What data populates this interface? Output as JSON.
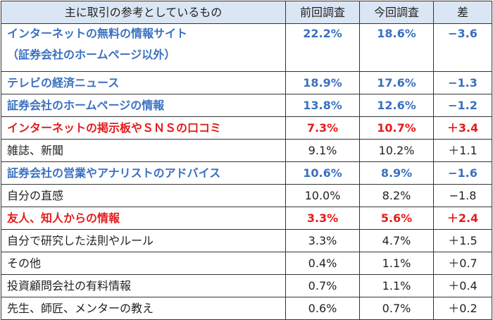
{
  "table": {
    "headers": [
      "主に取引の参考としているもの",
      "前回調査",
      "今回調査",
      "差"
    ],
    "rows": [
      {
        "label": "インターネットの無料の情報サイト",
        "label_line2": "（証券会社のホームページ以外）",
        "prev": "22.2%",
        "curr": "18.6%",
        "diff": "−3.6",
        "color": "#3a70c0"
      },
      {
        "label": "テレビの経済ニュース",
        "prev": "18.9%",
        "curr": "17.6%",
        "diff": "−1.3",
        "color": "#3a70c0"
      },
      {
        "label": "証券会社のホームページの情報",
        "prev": "13.8%",
        "curr": "12.6%",
        "diff": "−1.2",
        "color": "#3a70c0"
      },
      {
        "label": "インターネットの掲示板やＳＮＳの口コミ",
        "prev": "7.3%",
        "curr": "10.7%",
        "diff": "＋3.4",
        "color": "#e51c1c"
      },
      {
        "label": "雑誌、新聞",
        "prev": "9.1%",
        "curr": "10.2%",
        "diff": "＋1.1",
        "color": "#222222"
      },
      {
        "label": "証券会社の営業やアナリストのアドバイス",
        "prev": "10.6%",
        "curr": "8.9%",
        "diff": "−1.6",
        "color": "#3a70c0"
      },
      {
        "label": "自分の直感",
        "prev": "10.0%",
        "curr": "8.2%",
        "diff": "−1.8",
        "color": "#222222"
      },
      {
        "label": "友人、知人からの情報",
        "prev": "3.3%",
        "curr": "5.6%",
        "diff": "＋2.4",
        "color": "#e51c1c"
      },
      {
        "label": "自分で研究した法則やルール",
        "prev": "3.3%",
        "curr": "4.7%",
        "diff": "＋1.5",
        "color": "#222222"
      },
      {
        "label": "その他",
        "prev": "0.4%",
        "curr": "1.1%",
        "diff": "＋0.7",
        "color": "#222222"
      },
      {
        "label": "投資顧問会社の有料情報",
        "prev": "0.7%",
        "curr": "1.1%",
        "diff": "＋0.4",
        "color": "#222222"
      },
      {
        "label": "先生、師匠、メンターの教え",
        "prev": "0.6%",
        "curr": "0.7%",
        "diff": "＋0.2",
        "color": "#222222"
      }
    ],
    "header_bg": "#dbe6f4"
  }
}
